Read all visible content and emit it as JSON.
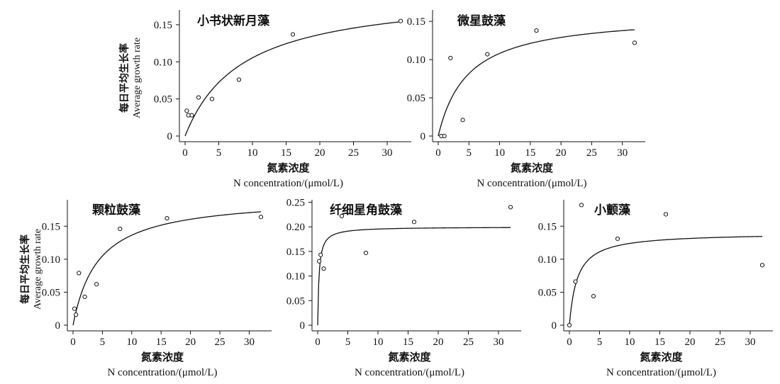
{
  "chart_data": [
    {
      "type": "scatter",
      "title": "小书状新月藻",
      "xlabel": "氮素浓度",
      "xlabel_en": "N concentration/(μmol/L)",
      "ylabel": "每日平均生长率",
      "ylabel_en": "Average growth rate",
      "xlim": [
        0,
        32
      ],
      "ylim": [
        0,
        0.17
      ],
      "x_ticks": [
        "0",
        "5",
        "10",
        "15",
        "20",
        "25",
        "30"
      ],
      "y_ticks": [
        "0",
        "0.05",
        "0.10",
        "0.15"
      ],
      "x": [
        0.25,
        0.5,
        1,
        2,
        4,
        8,
        16,
        32
      ],
      "y": [
        0.034,
        0.028,
        0.028,
        0.052,
        0.05,
        0.076,
        0.137,
        0.155
      ],
      "fit": {
        "model": "monod",
        "vmax": 0.195,
        "k": 8.5
      }
    },
    {
      "type": "scatter",
      "title": "微星鼓藻",
      "xlabel": "氮素浓度",
      "xlabel_en": "N concentration/(μmol/L)",
      "ylabel": "",
      "ylabel_en": "",
      "xlim": [
        0,
        32
      ],
      "ylim": [
        0,
        0.165
      ],
      "x_ticks": [
        "0",
        "5",
        "10",
        "15",
        "20",
        "25",
        "30"
      ],
      "y_ticks": [
        "0",
        "0.05",
        "0.10",
        "0.15"
      ],
      "x": [
        0.5,
        1,
        2,
        4,
        8,
        16,
        32
      ],
      "y": [
        0.0,
        0.0,
        0.102,
        0.021,
        0.107,
        0.138,
        0.122
      ],
      "fit": {
        "model": "monod",
        "vmax": 0.16,
        "k": 4.8
      }
    },
    {
      "type": "scatter",
      "title": "颗粒鼓藻",
      "xlabel": "氮素浓度",
      "xlabel_en": "N concentration/(μmol/L)",
      "ylabel": "每日平均生长率",
      "ylabel_en": "Average growth rate",
      "xlim": [
        0,
        32
      ],
      "ylim": [
        0,
        0.19
      ],
      "x_ticks": [
        "0",
        "5",
        "10",
        "15",
        "20",
        "25",
        "30"
      ],
      "y_ticks": [
        "0",
        "0.05",
        "0.10",
        "0.15"
      ],
      "x": [
        0.25,
        0.5,
        1,
        2,
        4,
        8,
        16,
        32
      ],
      "y": [
        0.025,
        0.016,
        0.079,
        0.043,
        0.062,
        0.146,
        0.162,
        0.164
      ],
      "fit": {
        "model": "monod",
        "vmax": 0.195,
        "k": 4.3
      }
    },
    {
      "type": "scatter",
      "title": "纤细星角鼓藻",
      "xlabel": "氮素浓度",
      "xlabel_en": "N concentration/(μmol/L)",
      "ylabel": "",
      "ylabel_en": "",
      "xlim": [
        0,
        32
      ],
      "ylim": [
        0,
        0.255
      ],
      "x_ticks": [
        "0",
        "5",
        "10",
        "15",
        "20",
        "25",
        "30"
      ],
      "y_ticks": [
        "0",
        "0.05",
        "0.10",
        "0.15",
        "0.20",
        "0.25"
      ],
      "x": [
        0.25,
        0.5,
        1,
        4,
        8,
        16,
        32
      ],
      "y": [
        0.13,
        0.143,
        0.115,
        0.222,
        0.147,
        0.21,
        0.24
      ],
      "fit": {
        "model": "monod",
        "vmax": 0.2,
        "k": 0.23
      }
    },
    {
      "type": "scatter",
      "title": "小颤藻",
      "xlabel": "氮素浓度",
      "xlabel_en": "N concentration/(μmol/L)",
      "ylabel": "",
      "ylabel_en": "",
      "xlim": [
        0,
        32
      ],
      "ylim": [
        0,
        0.19
      ],
      "x_ticks": [
        "0",
        "5",
        "10",
        "15",
        "20",
        "25",
        "30"
      ],
      "y_ticks": [
        "0",
        "0.05",
        "0.10",
        "0.15"
      ],
      "x": [
        0,
        1,
        2,
        4,
        8,
        16,
        32
      ],
      "y": [
        0.0,
        0.066,
        0.182,
        0.044,
        0.131,
        0.168,
        0.091
      ],
      "fit": {
        "model": "monod",
        "vmax": 0.14,
        "k": 1.3
      }
    }
  ]
}
